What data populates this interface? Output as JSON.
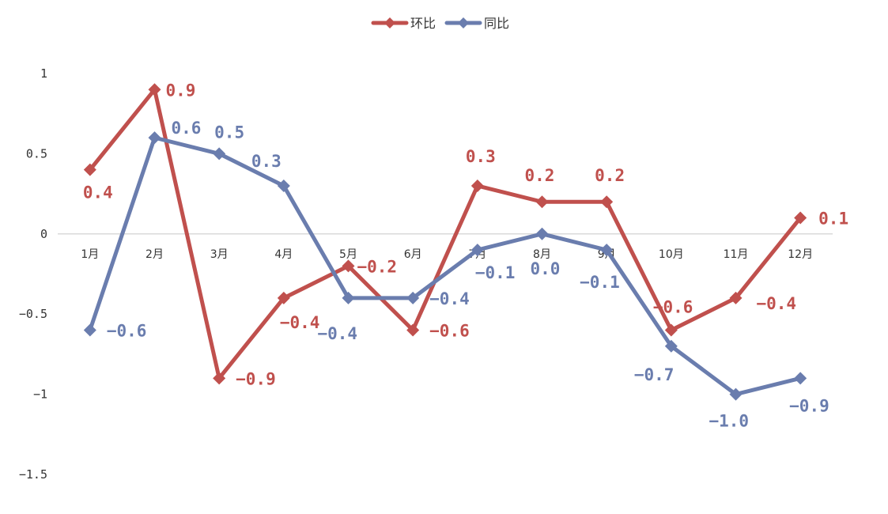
{
  "chart_data": {
    "type": "line",
    "categories": [
      "1月",
      "2月",
      "3月",
      "4月",
      "5月",
      "6月",
      "7月",
      "8月",
      "9月",
      "10月",
      "11月",
      "12月"
    ],
    "ylim": [
      -1.5,
      1
    ],
    "yticks": [
      1,
      0.5,
      0,
      -0.5,
      -1,
      -1.5
    ],
    "ytick_labels": [
      "1",
      "0.5",
      "0",
      "-0.5",
      "-1",
      "-1.5"
    ],
    "grid": false,
    "legend_position": "top-center",
    "series": [
      {
        "name": "环比",
        "color": "#C0504D",
        "values": [
          0.4,
          0.9,
          -0.9,
          -0.4,
          -0.2,
          -0.6,
          0.3,
          0.2,
          0.2,
          -0.6,
          -0.4,
          0.1
        ],
        "labels": [
          "0.4",
          "0.9",
          "-0.9",
          "-0.4",
          "-0.2",
          "-0.6",
          "0.3",
          "0.2",
          "0.2",
          "-0.6",
          "-0.4",
          "0.1"
        ]
      },
      {
        "name": "同比",
        "color": "#6A7DAE",
        "values": [
          -0.6,
          0.6,
          0.5,
          0.3,
          -0.4,
          -0.4,
          -0.1,
          0.0,
          -0.1,
          -0.7,
          -1.0,
          -0.9
        ],
        "labels": [
          "-0.6",
          "0.6",
          "0.5",
          "0.3",
          "-0.4",
          "-0.4",
          "-0.1",
          "0.0",
          "-0.1",
          "-0.7",
          "-1.0",
          "-0.9"
        ]
      }
    ]
  }
}
